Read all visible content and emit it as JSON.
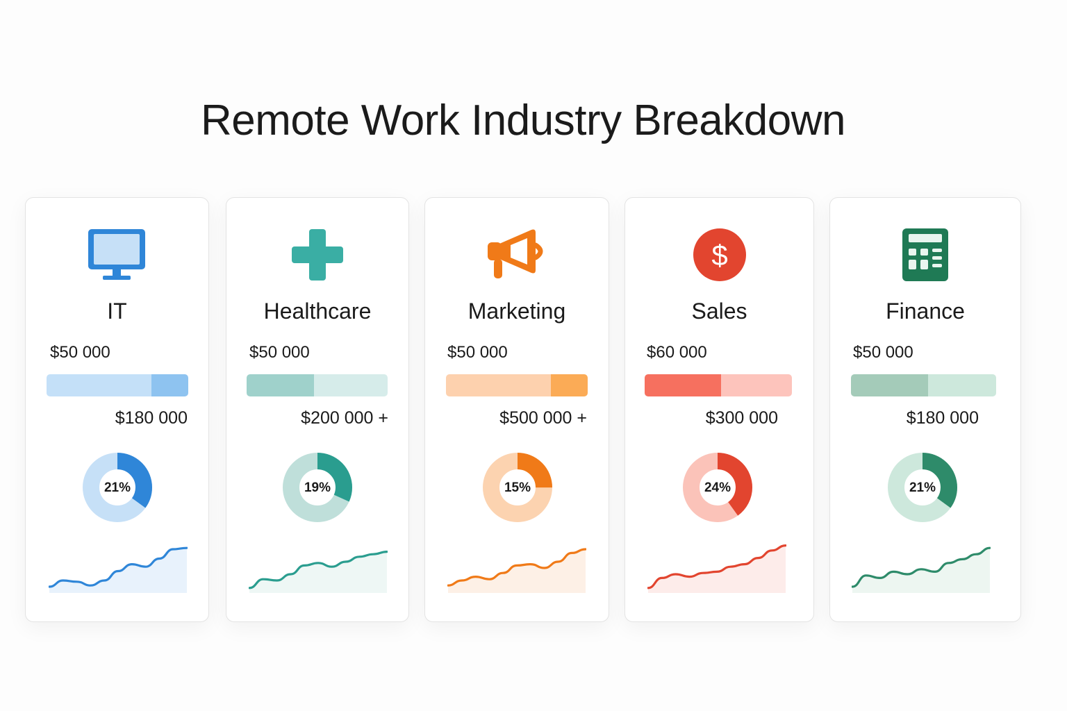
{
  "title": "Remote Work Industry Breakdown",
  "chart_data": [
    {
      "type": "card",
      "industry": "IT",
      "icon": "monitor-icon",
      "salary_min": "$50 000",
      "salary_max": "$180 000",
      "share_label": "21%",
      "share_percent": 21,
      "trend": [
        10,
        20,
        18,
        12,
        20,
        35,
        46,
        42,
        55,
        70,
        72
      ],
      "colors": {
        "main": "#2f86d8",
        "light": "#c6e0f7",
        "bar_light": "#c4e0f8",
        "bar_dark": "#8ec3f0",
        "area": "#e8f2fc"
      }
    },
    {
      "type": "card",
      "industry": "Healthcare",
      "icon": "medical-cross-icon",
      "salary_min": "$50 000",
      "salary_max": "$200 000 +",
      "share_label": "19%",
      "share_percent": 19,
      "trend": [
        8,
        22,
        20,
        30,
        44,
        48,
        42,
        50,
        58,
        62,
        66
      ],
      "colors": {
        "main": "#2a9d8f",
        "light": "#bfdfda",
        "bar_light": "#d6ecea",
        "bar_dark": "#9fd1cb",
        "area": "#eef7f5"
      }
    },
    {
      "type": "card",
      "industry": "Marketing",
      "icon": "megaphone-icon",
      "salary_min": "$50 000",
      "salary_max": "$500 000 +",
      "share_label": "15%",
      "share_percent": 15,
      "trend": [
        12,
        20,
        26,
        22,
        32,
        44,
        46,
        40,
        50,
        64,
        70
      ],
      "colors": {
        "main": "#f07a18",
        "light": "#fcd3b0",
        "bar_light": "#fdd1ae",
        "bar_dark": "#fbab56",
        "area": "#fdf0e6"
      }
    },
    {
      "type": "card",
      "industry": "Sales",
      "icon": "dollar-icon",
      "salary_min": "$60 000",
      "salary_max": "$300 000",
      "share_label": "24%",
      "share_percent": 24,
      "trend": [
        8,
        24,
        30,
        26,
        32,
        34,
        42,
        46,
        56,
        68,
        76
      ],
      "colors": {
        "main": "#e2452f",
        "light": "#fbc3b9",
        "bar_light": "#fdc4bc",
        "bar_dark": "#f6705f",
        "area": "#fdecea"
      }
    },
    {
      "type": "card",
      "industry": "Finance",
      "icon": "calculator-icon",
      "salary_min": "$50 000",
      "salary_max": "$180 000",
      "share_label": "21%",
      "share_percent": 21,
      "trend": [
        10,
        28,
        24,
        34,
        30,
        38,
        34,
        48,
        54,
        62,
        72
      ],
      "colors": {
        "main": "#2e8b6a",
        "light": "#cde8dc",
        "bar_light": "#cde8dc",
        "bar_dark": "#a4cbb9",
        "area": "#edf6f1"
      }
    }
  ]
}
